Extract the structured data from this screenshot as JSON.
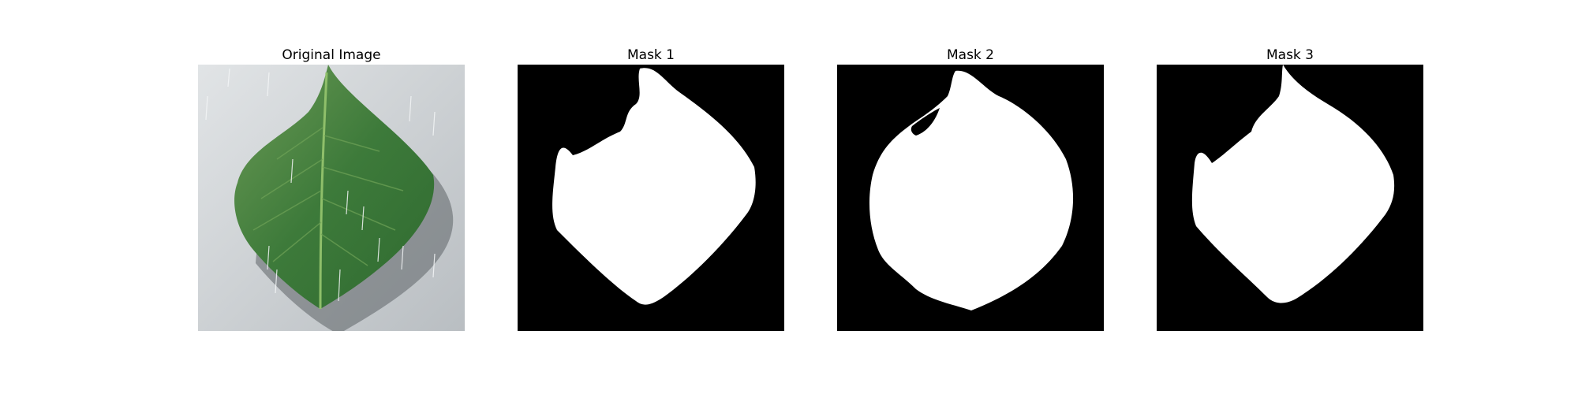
{
  "figure": {
    "panels": [
      {
        "title": "Original Image"
      },
      {
        "title": "Mask 1"
      },
      {
        "title": "Mask 2"
      },
      {
        "title": "Mask 3"
      }
    ]
  },
  "colors": {
    "background": "#ffffff",
    "mask_background": "#000000",
    "mask_foreground": "#ffffff",
    "leaf_green": "#3f7a3a",
    "surface_gray": "#c9cdd0"
  }
}
